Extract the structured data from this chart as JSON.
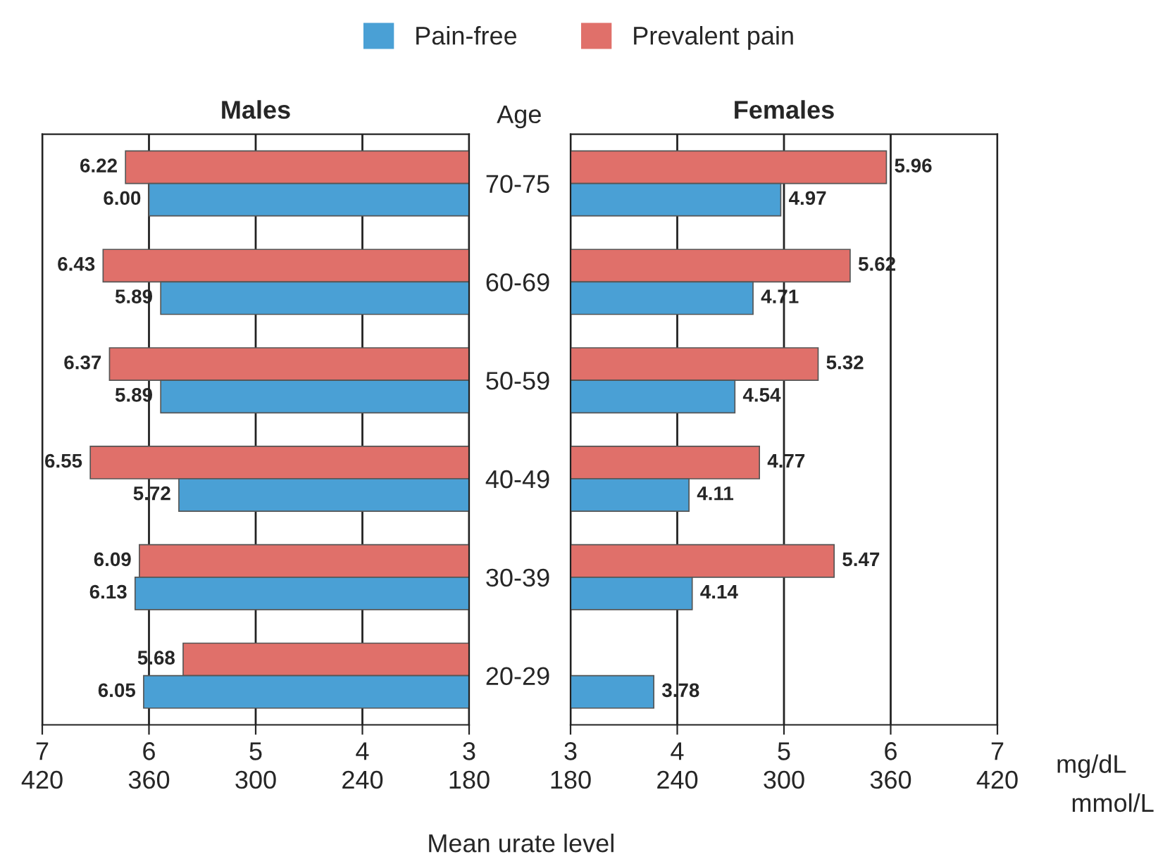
{
  "chart_data": [
    {
      "type": "bar",
      "orientation": "horizontal",
      "title": "Males",
      "legend": "top",
      "grid": "x",
      "data_labels": true,
      "tick_labels": "x",
      "categories": [
        null,
        null,
        null,
        null,
        null,
        null
      ],
      "xlim": [
        7,
        3
      ],
      "xticks": [
        7,
        6,
        5,
        4,
        3
      ],
      "x2lim": [
        420,
        180
      ],
      "x2ticks": [
        420,
        360,
        300,
        240,
        180
      ],
      "annotations": [
        "Mean urate level"
      ],
      "series": [
        {
          "name": "Prevalent pain",
          "color": "#e0706a",
          "values": [
            6.22,
            6.43,
            6.37,
            6.55,
            6.09,
            5.68
          ],
          "value_labels": [
            "6.22",
            "6.43",
            "6.37",
            "6.55",
            "6.09",
            "5.68"
          ]
        },
        {
          "name": "Pain-free",
          "color": "#4aa0d5",
          "values": [
            6.0,
            5.89,
            5.89,
            5.72,
            6.13,
            6.05
          ],
          "value_labels": [
            "6.00",
            "5.89",
            "5.89",
            "5.72",
            "6.13",
            "6.05"
          ]
        }
      ]
    },
    {
      "type": "bar",
      "orientation": "horizontal",
      "title": "Females",
      "ylabel": "Age",
      "xlabel": "mg/dL",
      "x2label": "mmol/L",
      "grid": "x",
      "data_labels": true,
      "categories": [
        "70-75",
        "60-69",
        "50-59",
        "40-49",
        "30-39",
        "20-29"
      ],
      "xlim": [
        3,
        7
      ],
      "xticks": [
        3,
        4,
        5,
        6,
        7
      ],
      "x2lim": [
        180,
        420
      ],
      "x2ticks": [
        180,
        240,
        300,
        360,
        420
      ],
      "series": [
        {
          "name": "Prevalent pain",
          "color": "#e0706a",
          "values": [
            5.96,
            5.62,
            5.32,
            4.77,
            5.47,
            null
          ],
          "value_labels": [
            "5.96",
            "5.62",
            "5.32",
            "4.77",
            "5.47",
            null
          ]
        },
        {
          "name": "Pain-free",
          "color": "#4aa0d5",
          "values": [
            4.97,
            4.71,
            4.54,
            4.11,
            4.14,
            3.78
          ],
          "value_labels": [
            "4.97",
            "4.71",
            "4.54",
            "4.11",
            "4.14",
            "3.78"
          ]
        }
      ]
    }
  ]
}
